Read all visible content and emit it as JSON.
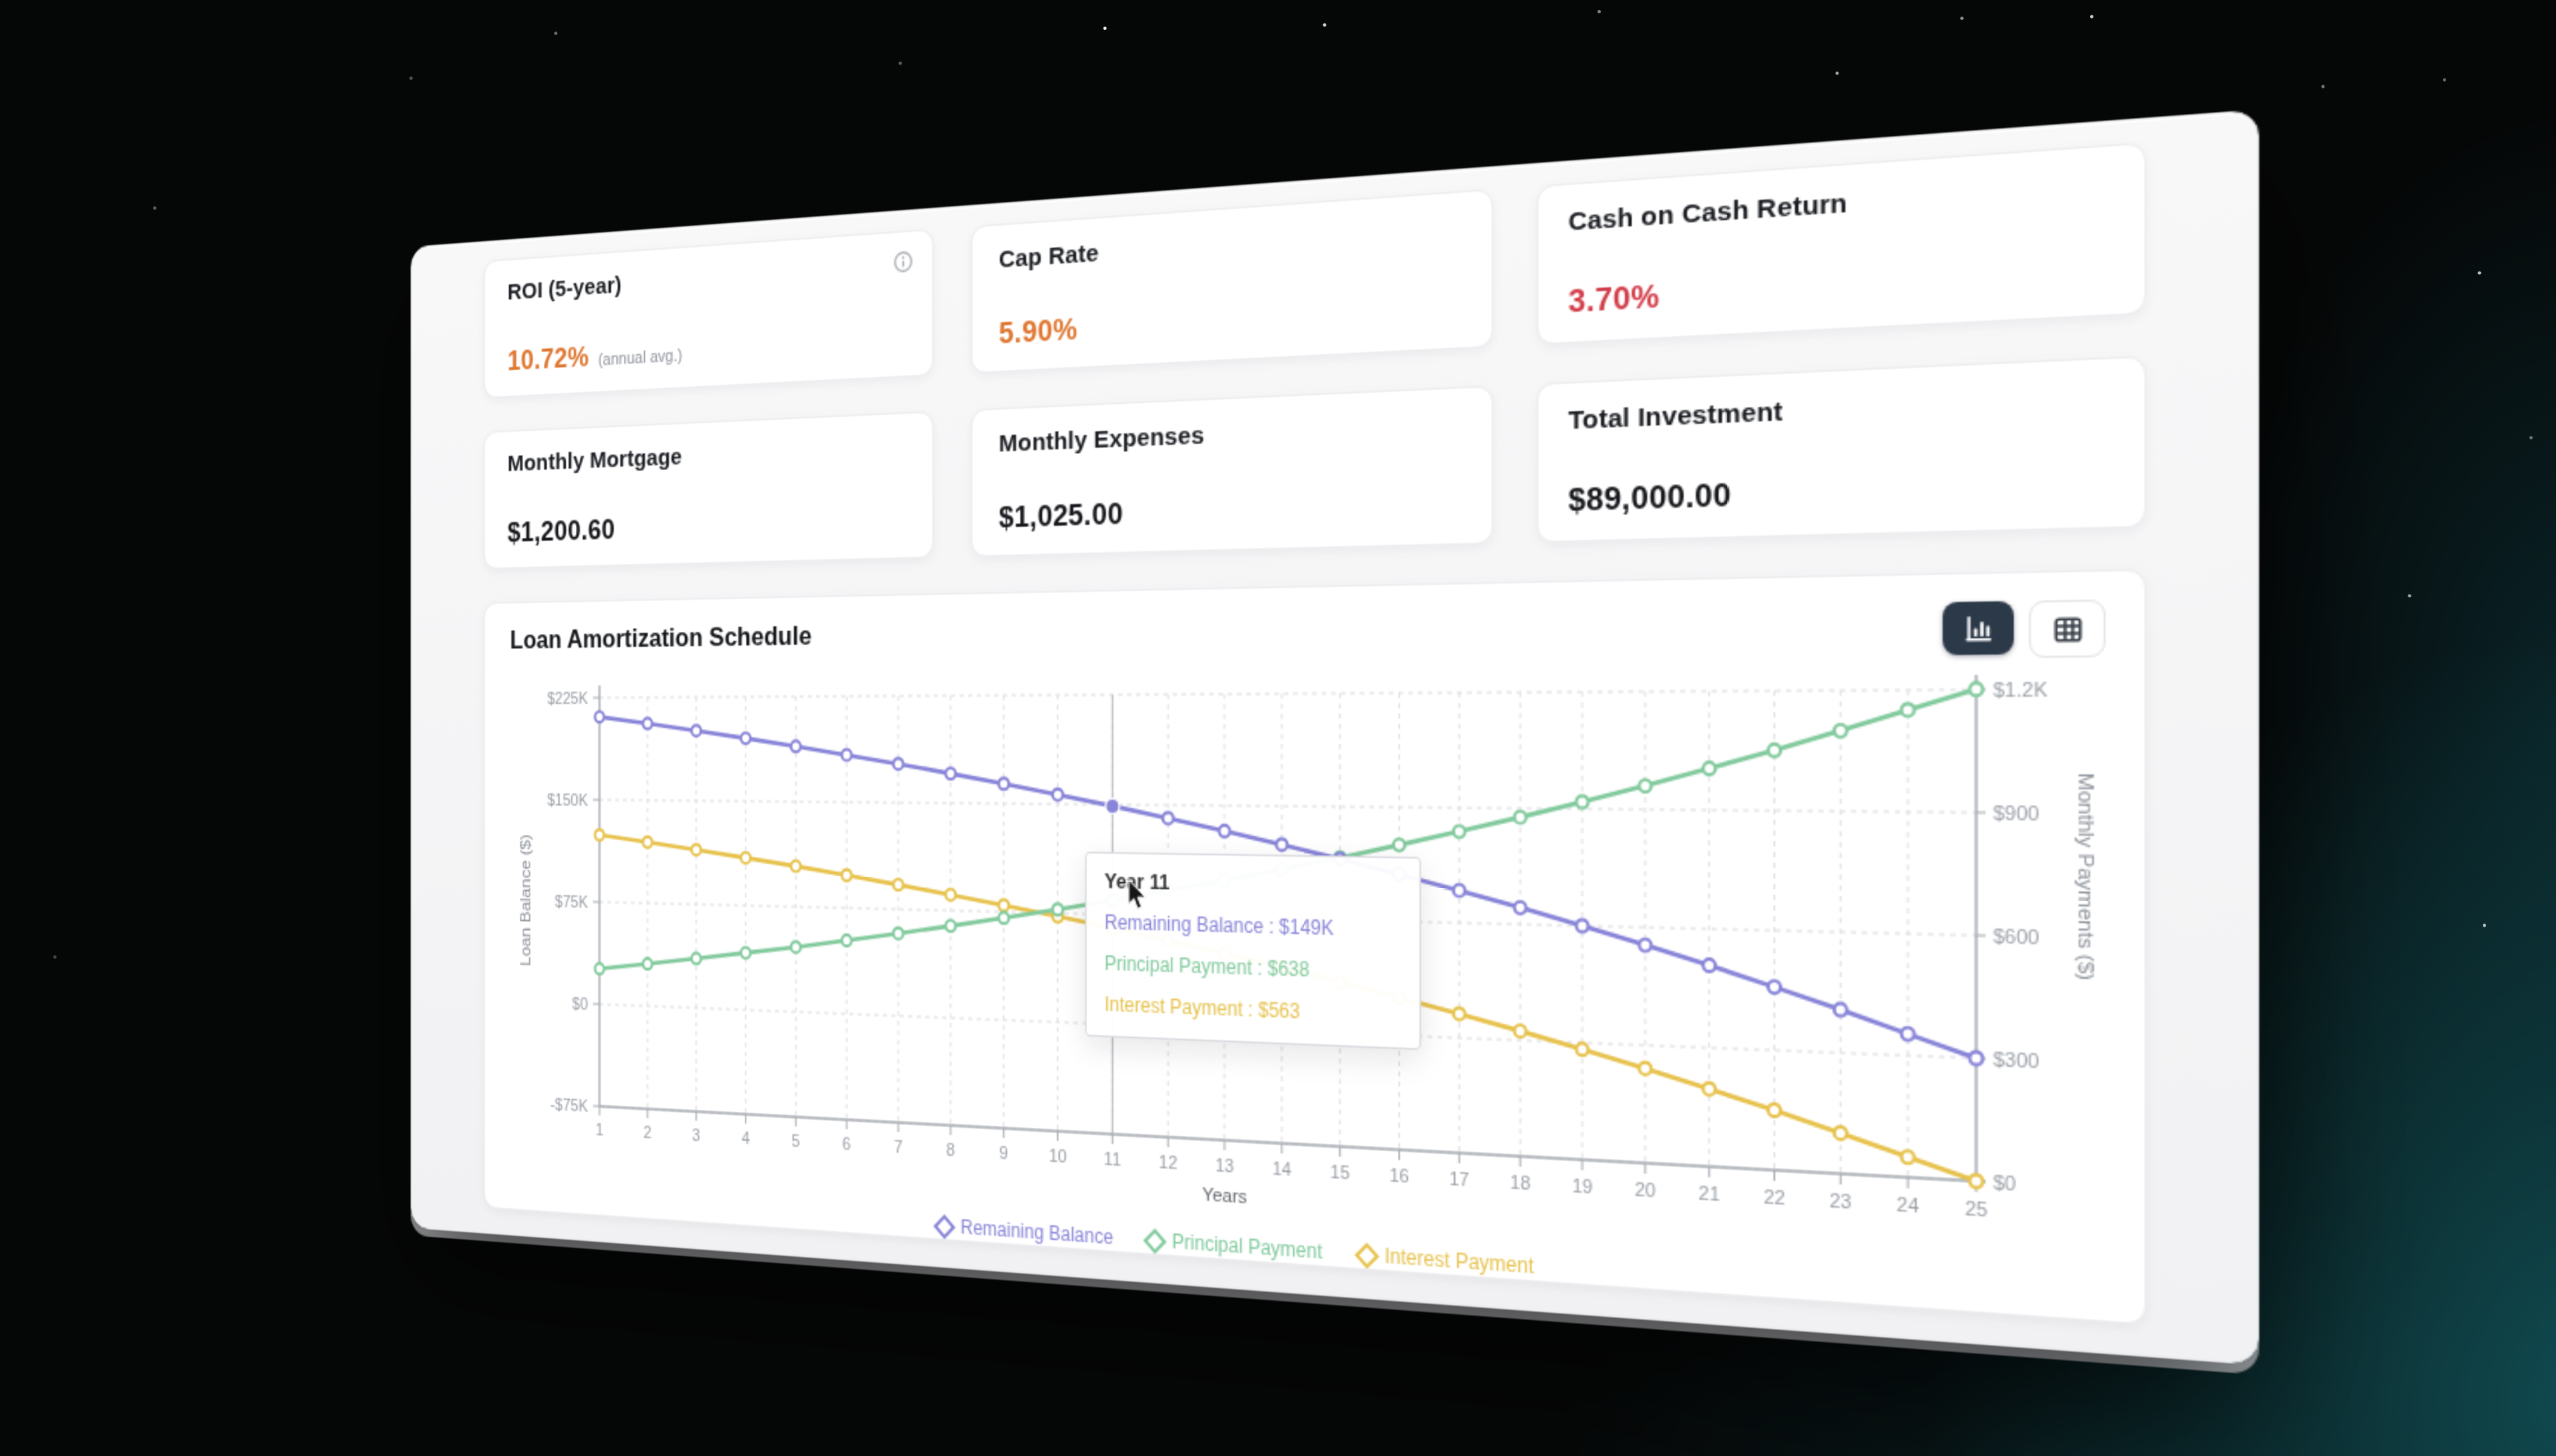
{
  "metrics": [
    {
      "label": "ROI (5-year)",
      "value": "10.72%",
      "suffix": "(annual avg.)",
      "color": "#df7630",
      "has_info_icon": true
    },
    {
      "label": "Cap Rate",
      "value": "5.90%",
      "color": "#df7630"
    },
    {
      "label": "Cash on Cash Return",
      "value": "3.70%",
      "color": "#d23c48"
    },
    {
      "label": "Monthly Mortgage",
      "value": "$1,200.60",
      "color": "#17181c"
    },
    {
      "label": "Monthly Expenses",
      "value": "$1,025.00",
      "color": "#17181c"
    },
    {
      "label": "Total Investment",
      "value": "$89,000.00",
      "color": "#17181c"
    }
  ],
  "chart_card": {
    "title": "Loan Amortization Schedule",
    "view_toggle": {
      "active": "chart",
      "options": [
        {
          "id": "chart",
          "icon": "bar-chart-icon"
        },
        {
          "id": "table",
          "icon": "table-icon"
        }
      ]
    }
  },
  "chart_data": {
    "type": "line",
    "title": "Loan Amortization Schedule",
    "x": [
      1,
      2,
      3,
      4,
      5,
      6,
      7,
      8,
      9,
      10,
      11,
      12,
      13,
      14,
      15,
      16,
      17,
      18,
      19,
      20,
      21,
      22,
      23,
      24,
      25
    ],
    "xlabel": "Years",
    "grid": "dashed",
    "legend_position": "bottom",
    "left_axis": {
      "label": "Loan Balance ($)",
      "min": -75000,
      "max": 225000,
      "ticks": [
        "$225K",
        "$150K",
        "$75K",
        "$0",
        "-$75K"
      ]
    },
    "right_axis": {
      "label": "Monthly Payments ($)",
      "min": 0,
      "max": 1200,
      "ticks": [
        "$1.2K",
        "$900",
        "$600",
        "$300",
        "$0"
      ]
    },
    "series": [
      {
        "name": "Remaining Balance",
        "axis": "left",
        "color": "#8884d8",
        "values": [
          210900,
          205900,
          200700,
          195200,
          189400,
          183400,
          177200,
          170600,
          163700,
          156500,
          149000,
          141100,
          132900,
          124300,
          115300,
          105900,
          96100,
          85800,
          75000,
          63700,
          52000,
          39600,
          26800,
          13300,
          0
        ]
      },
      {
        "name": "Principal Payment",
        "axis": "right",
        "color": "#82ca9d",
        "values": [
          404,
          423,
          443,
          464,
          485,
          508,
          532,
          557,
          583,
          610,
          638,
          668,
          699,
          731,
          765,
          801,
          838,
          877,
          918,
          960,
          1005,
          1051,
          1100,
          1151,
          1201
        ]
      },
      {
        "name": "Interest Payment",
        "axis": "right",
        "color": "#e7c24d",
        "values": [
          797,
          778,
          758,
          737,
          716,
          693,
          669,
          644,
          618,
          591,
          563,
          533,
          502,
          470,
          436,
          400,
          363,
          324,
          283,
          241,
          196,
          150,
          101,
          50,
          0
        ]
      }
    ]
  },
  "tooltip": {
    "title": "Year 11",
    "year": 11,
    "separator": " : ",
    "items": [
      {
        "label": "Remaining Balance",
        "value": "$149K",
        "color": "#8884d8"
      },
      {
        "label": "Principal Payment",
        "value": "$638",
        "color": "#82ca9d"
      },
      {
        "label": "Interest Payment",
        "value": "$563",
        "color": "#e7c24d"
      }
    ]
  }
}
